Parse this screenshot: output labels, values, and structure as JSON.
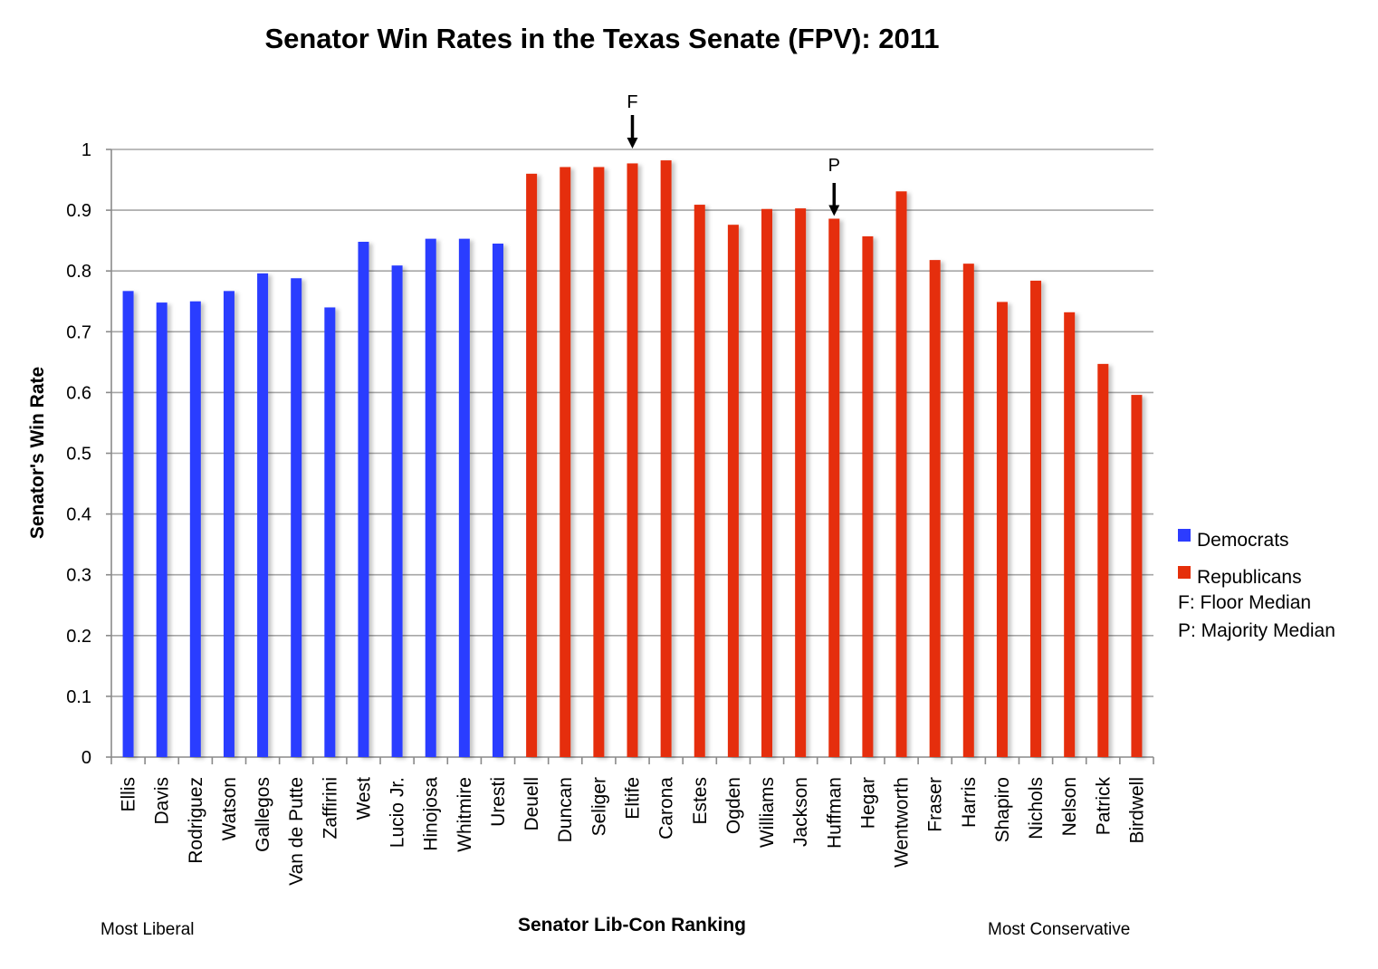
{
  "chart_data": {
    "type": "bar",
    "title": "Senator Win Rates in the Texas Senate (FPV): 2011",
    "xlabel": "Senator Lib-Con Ranking",
    "ylabel": "Senator's Win Rate",
    "ylim": [
      0,
      1
    ],
    "yticks": [
      "0",
      "0.1",
      "0.2",
      "0.3",
      "0.4",
      "0.5",
      "0.6",
      "0.7",
      "0.8",
      "0.9",
      "1"
    ],
    "grid": true,
    "categories": [
      "Ellis",
      "Davis",
      "Rodriguez",
      "Watson",
      "Gallegos",
      "Van de Putte",
      "Zaffirini",
      "West",
      "Lucio Jr.",
      "Hinojosa",
      "Whitmire",
      "Uresti",
      "Deuell",
      "Duncan",
      "Seliger",
      "Eltife",
      "Carona",
      "Estes",
      "Ogden",
      "Williams",
      "Jackson",
      "Huffman",
      "Hegar",
      "Wentworth",
      "Fraser",
      "Harris",
      "Shapiro",
      "Nichols",
      "Nelson",
      "Patrick",
      "Birdwell"
    ],
    "values": [
      0.767,
      0.748,
      0.75,
      0.767,
      0.796,
      0.788,
      0.74,
      0.848,
      0.809,
      0.853,
      0.853,
      0.845,
      0.96,
      0.971,
      0.971,
      0.977,
      0.982,
      0.909,
      0.876,
      0.902,
      0.903,
      0.886,
      0.857,
      0.931,
      0.818,
      0.812,
      0.749,
      0.784,
      0.732,
      0.647,
      0.596
    ],
    "party": [
      "D",
      "D",
      "D",
      "D",
      "D",
      "D",
      "D",
      "D",
      "D",
      "D",
      "D",
      "D",
      "R",
      "R",
      "R",
      "R",
      "R",
      "R",
      "R",
      "R",
      "R",
      "R",
      "R",
      "R",
      "R",
      "R",
      "R",
      "R",
      "R",
      "R",
      "R"
    ],
    "series": [
      {
        "name": "Democrats",
        "color": "#2c3cff"
      },
      {
        "name": "Republicans",
        "color": "#e52f0a"
      }
    ],
    "legend": {
      "position": "right",
      "notes": [
        "F: Floor Median",
        "P: Majority Median"
      ]
    },
    "annotations": [
      {
        "label": "F",
        "category": "Eltife"
      },
      {
        "label": "P",
        "category": "Huffman"
      }
    ],
    "axis_notes": {
      "left": "Most Liberal",
      "right": "Most Conservative"
    }
  }
}
